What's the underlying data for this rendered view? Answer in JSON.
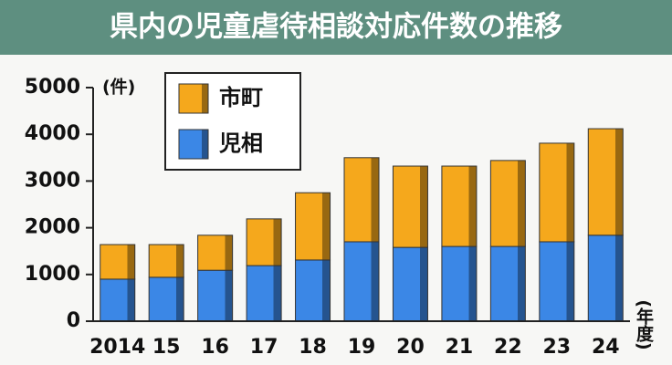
{
  "chart_data": {
    "type": "stacked_bar",
    "title": "県内の児童虐待相談対応件数の推移",
    "y_label": "(件)",
    "x_label": "(年度)",
    "categories": [
      "2014",
      "15",
      "16",
      "17",
      "18",
      "19",
      "20",
      "21",
      "22",
      "23",
      "24"
    ],
    "series": [
      {
        "name": "児相",
        "color": "#3b87e6",
        "values": [
          900,
          940,
          1090,
          1190,
          1310,
          1700,
          1580,
          1600,
          1600,
          1700,
          1840
        ]
      },
      {
        "name": "市町",
        "color": "#f5a81c",
        "values": [
          740,
          700,
          750,
          1000,
          1440,
          1800,
          1740,
          1720,
          1840,
          2110,
          2280
        ]
      }
    ],
    "ylim": [
      0,
      5000
    ],
    "yticks": [
      0,
      1000,
      2000,
      3000,
      4000,
      5000
    ]
  }
}
